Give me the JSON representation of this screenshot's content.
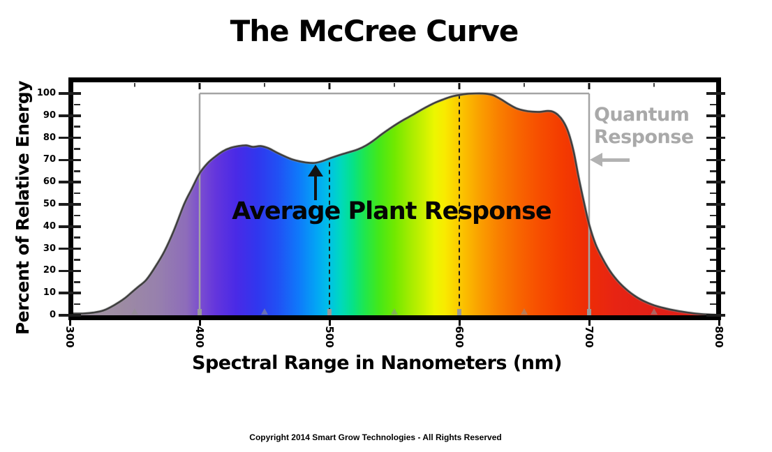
{
  "title": "The McCree Curve",
  "y_axis": {
    "label": "Percent of Relative Energy",
    "ticks": [
      0,
      10,
      20,
      30,
      40,
      50,
      60,
      70,
      80,
      90,
      100
    ]
  },
  "x_axis": {
    "label": "Spectral Range in Nanometers (nm)",
    "ticks": [
      300,
      400,
      500,
      600,
      700,
      800
    ]
  },
  "annotations": {
    "plant_response": "Average Plant Response",
    "quantum_response_line1": "Quantum",
    "quantum_response_line2": "Response"
  },
  "footer": {
    "copyright": "Copyright 2014 Smart Grow Technologies - All Rights Reserved"
  },
  "colors": {
    "curve_stroke": "#3f3f3f",
    "curve_halo": "#9a9a9a",
    "quantum_line_gray": "#a4a4a4",
    "quantum_text_gray": "#a9a9a9",
    "dashed_line_black": "#1a1a1a",
    "marker_gray": "#8f8f8f"
  },
  "chart_data": {
    "type": "area",
    "title": "The McCree Curve",
    "xlabel": "Spectral Range in Nanometers (nm)",
    "ylabel": "Percent of Relative Energy",
    "xlim": [
      300,
      800
    ],
    "ylim": [
      0,
      100
    ],
    "grid": false,
    "x_ticks": [
      300,
      400,
      500,
      600,
      700,
      800
    ],
    "y_tick_major_step": 10,
    "y_tick_minor_step": 5,
    "points": [
      [
        300,
        0.8
      ],
      [
        310,
        0.8
      ],
      [
        318,
        1.2
      ],
      [
        326,
        2.2
      ],
      [
        334,
        4.5
      ],
      [
        342,
        7.5
      ],
      [
        348,
        10.5
      ],
      [
        353,
        13
      ],
      [
        359,
        16
      ],
      [
        366,
        22
      ],
      [
        373,
        29
      ],
      [
        380,
        38
      ],
      [
        388,
        50
      ],
      [
        394,
        57
      ],
      [
        400,
        64
      ],
      [
        406,
        68.5
      ],
      [
        412,
        71.5
      ],
      [
        418,
        74
      ],
      [
        424,
        75.5
      ],
      [
        430,
        76.3
      ],
      [
        436,
        76.6
      ],
      [
        441,
        75.9
      ],
      [
        447,
        76.3
      ],
      [
        453,
        75.3
      ],
      [
        459,
        73.5
      ],
      [
        465,
        71.8
      ],
      [
        471,
        70.3
      ],
      [
        477,
        69.4
      ],
      [
        483,
        68.8
      ],
      [
        489,
        68.7
      ],
      [
        495,
        69.6
      ],
      [
        501,
        70.9
      ],
      [
        508,
        72.3
      ],
      [
        515,
        73.5
      ],
      [
        522,
        74.8
      ],
      [
        528,
        76.5
      ],
      [
        534,
        78.8
      ],
      [
        540,
        81.5
      ],
      [
        546,
        84
      ],
      [
        552,
        86.3
      ],
      [
        558,
        88.4
      ],
      [
        564,
        90.3
      ],
      [
        570,
        92.4
      ],
      [
        576,
        94.3
      ],
      [
        582,
        96
      ],
      [
        588,
        97.4
      ],
      [
        594,
        98.6
      ],
      [
        600,
        99.3
      ],
      [
        606,
        99.8
      ],
      [
        613,
        100
      ],
      [
        620,
        99.9
      ],
      [
        626,
        99.2
      ],
      [
        632,
        97.4
      ],
      [
        638,
        95.2
      ],
      [
        644,
        93.3
      ],
      [
        650,
        92.3
      ],
      [
        656,
        91.8
      ],
      [
        662,
        91.7
      ],
      [
        668,
        92.1
      ],
      [
        672,
        91.8
      ],
      [
        676,
        90.3
      ],
      [
        680,
        87.5
      ],
      [
        684,
        82.5
      ],
      [
        688,
        74
      ],
      [
        692,
        62
      ],
      [
        696,
        51
      ],
      [
        700,
        41
      ],
      [
        705,
        32
      ],
      [
        710,
        26
      ],
      [
        716,
        20
      ],
      [
        722,
        15.5
      ],
      [
        728,
        12
      ],
      [
        735,
        8.8
      ],
      [
        742,
        6.4
      ],
      [
        750,
        4.5
      ],
      [
        758,
        3.2
      ],
      [
        766,
        2.2
      ],
      [
        774,
        1.4
      ],
      [
        782,
        0.8
      ],
      [
        790,
        0.4
      ],
      [
        800,
        0.2
      ]
    ],
    "reference_lines": [
      {
        "x": 400,
        "style": "solid",
        "color": "#a4a4a4",
        "from": 100,
        "to": 0
      },
      {
        "x": 700,
        "style": "solid",
        "color": "#a4a4a4",
        "from": 100,
        "to": 0
      },
      {
        "x": 500,
        "style": "dashed",
        "color": "#1a1a1a",
        "from": 69,
        "to": 0
      },
      {
        "x": 600,
        "style": "dashed",
        "color": "#1a1a1a",
        "from": 99.5,
        "to": 0
      },
      {
        "y": 100,
        "style": "solid",
        "color": "#a4a4a4",
        "from": 400,
        "to": 700
      }
    ],
    "minor_marker_x": [
      350,
      450,
      550,
      650,
      750
    ],
    "top_tick_x": [
      350,
      400,
      450,
      500,
      550,
      600,
      650,
      700,
      750
    ],
    "spectrum_stops": [
      [
        300,
        "#a79aa7"
      ],
      [
        340,
        "#9d8ba3"
      ],
      [
        368,
        "#9780ad"
      ],
      [
        390,
        "#8d6cba"
      ],
      [
        400,
        "#7b4ed0"
      ],
      [
        412,
        "#6436dc"
      ],
      [
        428,
        "#4a2ae6"
      ],
      [
        444,
        "#3136ee"
      ],
      [
        460,
        "#2150f4"
      ],
      [
        476,
        "#0f78fa"
      ],
      [
        490,
        "#03a5f5"
      ],
      [
        500,
        "#00c2e6"
      ],
      [
        509,
        "#00d9bc"
      ],
      [
        518,
        "#06e287"
      ],
      [
        527,
        "#1fe74e"
      ],
      [
        538,
        "#43e81a"
      ],
      [
        550,
        "#70e900"
      ],
      [
        562,
        "#a3ec00"
      ],
      [
        572,
        "#c9f100"
      ],
      [
        581,
        "#ecf600"
      ],
      [
        589,
        "#f9ea00"
      ],
      [
        597,
        "#fbd200"
      ],
      [
        607,
        "#fbb600"
      ],
      [
        618,
        "#fa9a00"
      ],
      [
        630,
        "#f98000"
      ],
      [
        645,
        "#f86600"
      ],
      [
        660,
        "#f75000"
      ],
      [
        678,
        "#f43c00"
      ],
      [
        698,
        "#ee2d06"
      ],
      [
        720,
        "#e72413"
      ],
      [
        750,
        "#e22017"
      ],
      [
        800,
        "#de1e16"
      ]
    ]
  }
}
